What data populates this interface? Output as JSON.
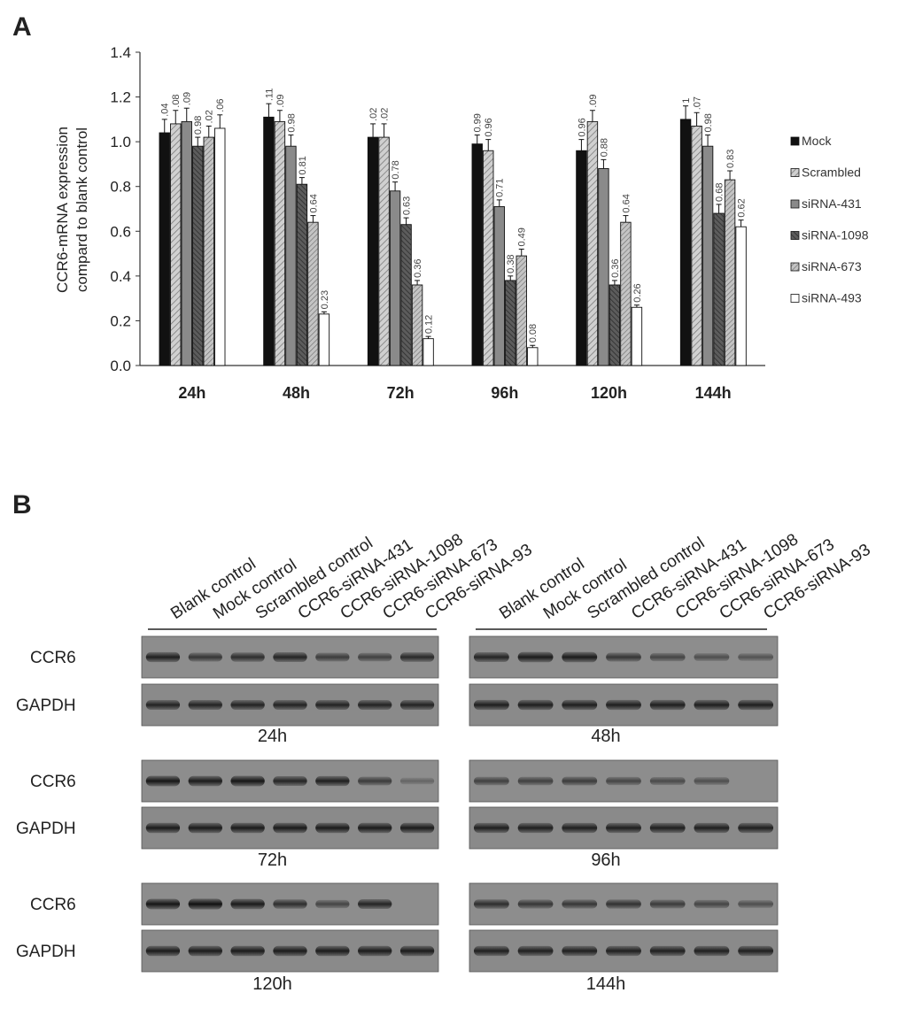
{
  "panel_a": {
    "letter": "A"
  },
  "panel_b": {
    "letter": "B",
    "lane_labels": [
      "Blank control",
      "Mock control",
      "Scrambled control",
      "CCR6-siRNA-431",
      "CCR6-siRNA-1098",
      "CCR6-siRNA-673",
      "CCR6-siRNA-93"
    ],
    "row_labels": {
      "ccr6": "CCR6",
      "gapdh": "GAPDH"
    },
    "blots": [
      {
        "time": "24h",
        "ccr6": [
          0.85,
          0.6,
          0.7,
          0.8,
          0.55,
          0.5,
          0.75
        ],
        "gapdh": [
          0.8,
          0.8,
          0.8,
          0.8,
          0.8,
          0.8,
          0.8
        ]
      },
      {
        "time": "48h",
        "ccr6": [
          0.8,
          0.9,
          0.9,
          0.6,
          0.45,
          0.35,
          0.3
        ],
        "gapdh": [
          0.85,
          0.85,
          0.85,
          0.85,
          0.85,
          0.85,
          0.85
        ]
      },
      {
        "time": "72h",
        "ccr6": [
          0.95,
          0.9,
          0.95,
          0.8,
          0.85,
          0.55,
          0.1
        ],
        "gapdh": [
          0.9,
          0.9,
          0.9,
          0.9,
          0.9,
          0.9,
          0.9
        ]
      },
      {
        "time": "96h",
        "ccr6": [
          0.5,
          0.5,
          0.55,
          0.45,
          0.4,
          0.35,
          0.0
        ],
        "gapdh": [
          0.85,
          0.85,
          0.85,
          0.85,
          0.85,
          0.85,
          0.85
        ]
      },
      {
        "time": "120h",
        "ccr6": [
          0.95,
          1.0,
          0.9,
          0.7,
          0.45,
          0.8,
          0.0
        ],
        "gapdh": [
          0.9,
          0.9,
          0.9,
          0.9,
          0.9,
          0.9,
          0.9
        ]
      },
      {
        "time": "144h",
        "ccr6": [
          0.7,
          0.6,
          0.6,
          0.65,
          0.55,
          0.45,
          0.35
        ],
        "gapdh": [
          0.85,
          0.85,
          0.85,
          0.85,
          0.85,
          0.85,
          0.85
        ]
      }
    ]
  },
  "colors": {
    "mock": "#111111",
    "scrambled": "#d0d0d0",
    "sirna431": "#8a8a8a",
    "sirna1098": "#5c5c5c",
    "sirna673": "#c4c4c4",
    "sirna493": "#ffffff"
  },
  "chart_data": {
    "type": "bar",
    "ylabel": "CCR6-mRNA expression compard to blank control",
    "ylabel_lines": [
      "CCR6-mRNA expression",
      "compard to blank control"
    ],
    "ylim": [
      0,
      1.4
    ],
    "yticks": [
      "0.0",
      "0.2",
      "0.4",
      "0.6",
      "0.8",
      "1.0",
      "1.2",
      "1.4"
    ],
    "categories": [
      "24h",
      "48h",
      "72h",
      "96h",
      "120h",
      "144h"
    ],
    "legend_position": "right",
    "series": [
      {
        "name": "Mock",
        "values": [
          1.04,
          1.11,
          1.02,
          0.99,
          0.96,
          1.1
        ],
        "labels": [
          ".04",
          ".11",
          ".02",
          "0.99",
          "0.96",
          "1"
        ]
      },
      {
        "name": "Scrambled",
        "values": [
          1.08,
          1.09,
          1.02,
          0.96,
          1.09,
          1.07
        ],
        "labels": ".08,.09,.02,0.96,.09,.07"
      },
      {
        "name": "siRNA-431",
        "values": [
          1.09,
          0.98,
          0.78,
          0.71,
          0.88,
          0.98
        ],
        "labels": ".09,0.98,0.78,0.71,0.88,0.98"
      },
      {
        "name": "siRNA-1098",
        "values": [
          0.98,
          0.81,
          0.63,
          0.38,
          0.36,
          0.68
        ],
        "labels": "0.98,0.81,0.63,0.38,0.36,0.68"
      },
      {
        "name": "siRNA-673",
        "values": [
          1.02,
          0.64,
          0.36,
          0.49,
          0.64,
          0.83
        ],
        "labels": ".02,0.64,0.36,0.49,0.64,0.83"
      },
      {
        "name": "siRNA-493",
        "values": [
          1.06,
          0.23,
          0.12,
          0.08,
          0.26,
          0.62
        ],
        "labels": ".06,0.23,0.12,0.08,0.26,0.62"
      }
    ],
    "errors": [
      [
        0.06,
        0.06,
        0.06,
        0.04,
        0.05,
        0.06
      ],
      [
        0.06,
        0.05,
        0.06,
        0.05,
        0.05,
        0.06
      ],
      [
        0.06,
        0.05,
        0.04,
        0.03,
        0.04,
        0.05
      ],
      [
        0.04,
        0.03,
        0.03,
        0.02,
        0.02,
        0.04
      ],
      [
        0.05,
        0.03,
        0.02,
        0.03,
        0.03,
        0.04
      ],
      [
        0.06,
        0.01,
        0.01,
        0.01,
        0.01,
        0.03
      ]
    ]
  }
}
